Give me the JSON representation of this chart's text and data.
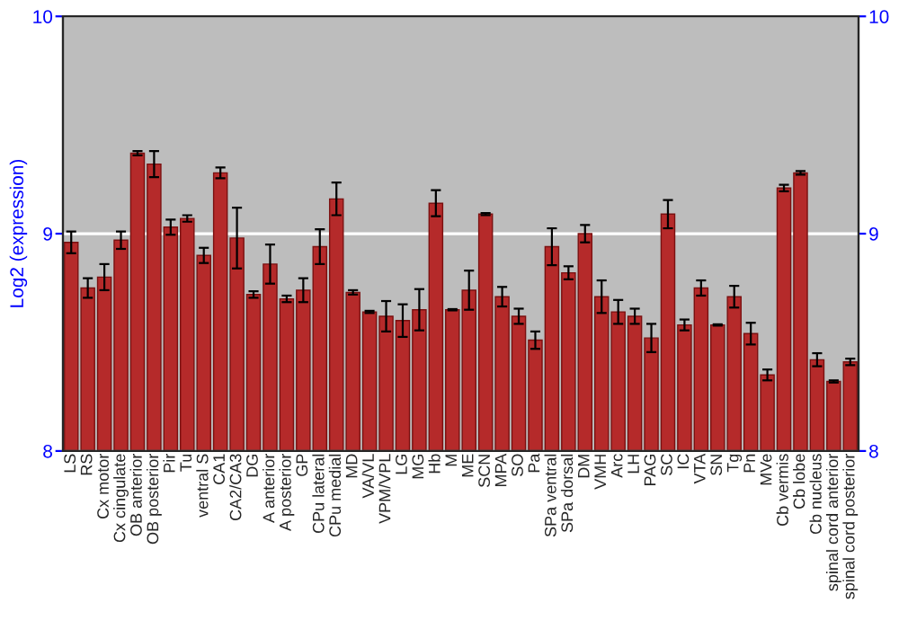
{
  "chart_data": {
    "type": "bar",
    "ylabel": "Log2 (expression)",
    "categories": [
      "LS",
      "RS",
      "Cx motor",
      "Cx cingulate",
      "OB anterior",
      "OB posterior",
      "Pir",
      "Tu",
      "ventral S",
      "CA1",
      "CA2/CA3",
      "DG",
      "A anterior",
      "A posterior",
      "GP",
      "CPu lateral",
      "CPu medial",
      "MD",
      "VA/VL",
      "VPM/VPL",
      "LG",
      "MG",
      "Hb",
      "M",
      "ME",
      "SCN",
      "MPA",
      "SO",
      "Pa",
      "SPa ventral",
      "SPa dorsal",
      "DM",
      "VMH",
      "Arc",
      "LH",
      "PAG",
      "SC",
      "IC",
      "VTA",
      "SN",
      "Tg",
      "Pn",
      "MVe",
      "Cb vermis",
      "Cb lobe",
      "Cb nucleus",
      "spinal cord anterior",
      "spinal cord posterior"
    ],
    "values": [
      8.96,
      8.75,
      8.8,
      8.97,
      9.37,
      9.32,
      9.03,
      9.07,
      8.9,
      9.28,
      8.98,
      8.72,
      8.86,
      8.7,
      8.74,
      8.94,
      9.16,
      8.73,
      8.64,
      8.62,
      8.6,
      8.65,
      9.14,
      8.65,
      8.74,
      9.09,
      8.71,
      8.62,
      8.51,
      8.94,
      8.82,
      9.0,
      8.71,
      8.64,
      8.62,
      8.52,
      9.09,
      8.58,
      8.75,
      8.58,
      8.71,
      8.54,
      8.35,
      9.21,
      9.28,
      8.42,
      8.32,
      8.41
    ],
    "errors": [
      0.05,
      0.045,
      0.06,
      0.04,
      0.01,
      0.06,
      0.035,
      0.015,
      0.035,
      0.025,
      0.14,
      0.015,
      0.09,
      0.015,
      0.055,
      0.08,
      0.075,
      0.01,
      0.005,
      0.07,
      0.075,
      0.095,
      0.06,
      0.003,
      0.09,
      0.005,
      0.045,
      0.035,
      0.04,
      0.085,
      0.03,
      0.04,
      0.075,
      0.055,
      0.035,
      0.065,
      0.065,
      0.025,
      0.035,
      0.003,
      0.05,
      0.05,
      0.025,
      0.015,
      0.008,
      0.03,
      0.005,
      0.015
    ],
    "color": "#b52a2a",
    "ylim": [
      8,
      10
    ],
    "yticks": [
      8,
      9,
      10
    ],
    "y2lim": [
      8,
      10
    ],
    "y2ticks": [
      8,
      9,
      10
    ],
    "grid": "y"
  }
}
